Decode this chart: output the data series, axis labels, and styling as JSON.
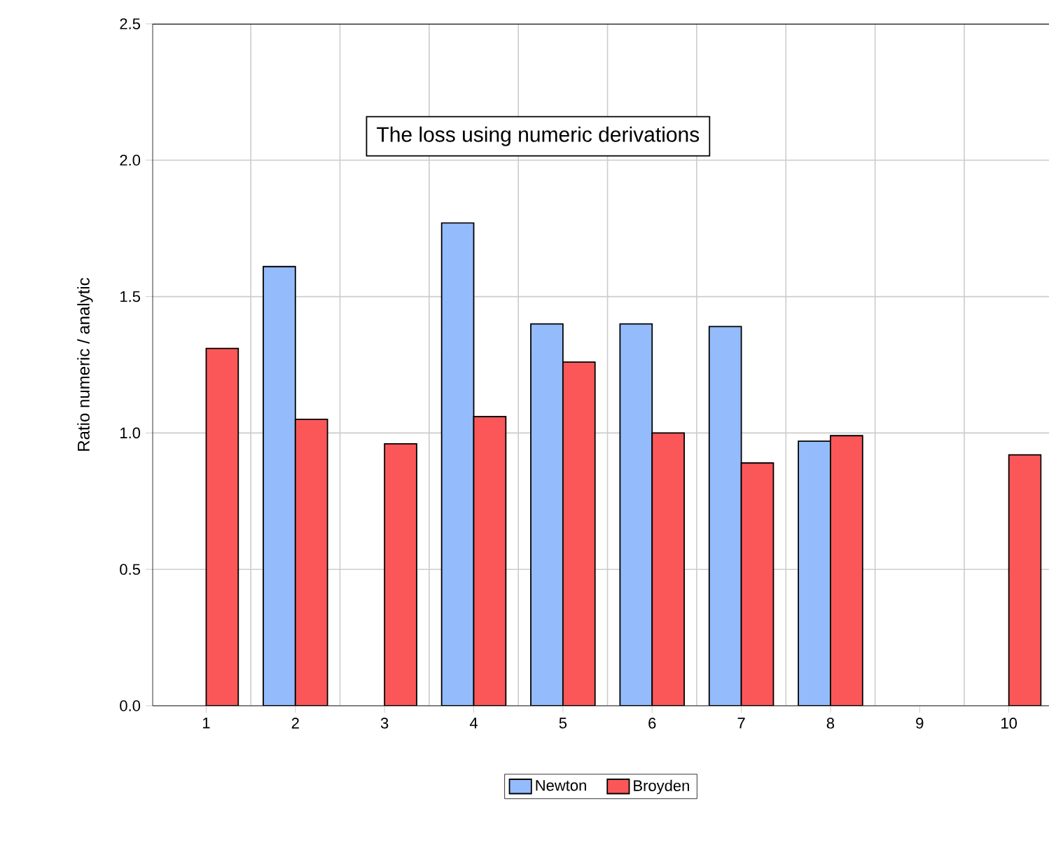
{
  "chart_data": {
    "type": "bar",
    "title": "The loss using numeric derivations",
    "ylabel": "Ratio numeric / analytic",
    "categories": [
      "1",
      "2",
      "3",
      "4",
      "5",
      "6",
      "7",
      "8",
      "9",
      "10"
    ],
    "series": [
      {
        "name": "Newton",
        "color": "#94bbfc",
        "values": [
          null,
          1.61,
          null,
          1.77,
          1.4,
          1.4,
          1.39,
          0.97,
          null,
          null
        ]
      },
      {
        "name": "Broyden",
        "color": "#fb5758",
        "values": [
          1.31,
          1.05,
          0.96,
          1.06,
          1.26,
          1.0,
          0.89,
          0.99,
          null,
          0.92
        ]
      }
    ],
    "ylim": [
      0,
      2.5
    ],
    "yticks": [
      {
        "value": 0,
        "label": "0.0"
      },
      {
        "value": 0.5,
        "label": "0.5"
      },
      {
        "value": 1,
        "label": "1.0"
      },
      {
        "value": 1.5,
        "label": "1.5"
      },
      {
        "value": 2,
        "label": "2.0"
      },
      {
        "value": 2.5,
        "label": "2.5"
      }
    ],
    "grid": true,
    "legend": "bottom"
  }
}
